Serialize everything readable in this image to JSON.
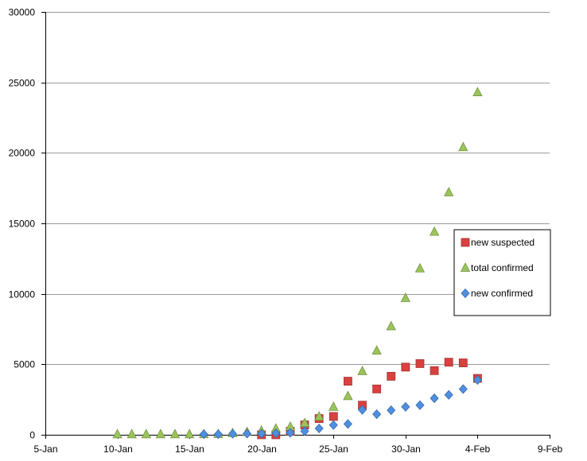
{
  "chart_data": {
    "type": "scatter",
    "title": "",
    "xlabel": "",
    "ylabel": "",
    "x_axis": {
      "type": "date",
      "min": "2020-01-05",
      "max": "2020-02-09",
      "ticks": [
        "2020-01-05",
        "2020-01-10",
        "2020-01-15",
        "2020-01-20",
        "2020-01-25",
        "2020-01-30",
        "2020-02-04",
        "2020-02-09"
      ],
      "tick_labels": [
        "5-Jan",
        "10-Jan",
        "15-Jan",
        "20-Jan",
        "25-Jan",
        "30-Jan",
        "4-Feb",
        "9-Feb"
      ]
    },
    "y_axis": {
      "min": 0,
      "max": 30000,
      "ticks": [
        0,
        5000,
        10000,
        15000,
        20000,
        25000,
        30000
      ],
      "tick_labels": [
        "0",
        "5000",
        "10000",
        "15000",
        "20000",
        "25000",
        "30000"
      ]
    },
    "grid": {
      "horizontal": true,
      "vertical": false
    },
    "legend_position": "right",
    "series": [
      {
        "name": "new suspected",
        "marker": "square",
        "color": "#d9413f",
        "points": [
          {
            "x": "2020-01-20",
            "y": 0
          },
          {
            "x": "2020-01-21",
            "y": 0
          },
          {
            "x": "2020-01-22",
            "y": 250
          },
          {
            "x": "2020-01-23",
            "y": 700
          },
          {
            "x": "2020-01-24",
            "y": 1150
          },
          {
            "x": "2020-01-25",
            "y": 1300
          },
          {
            "x": "2020-01-26",
            "y": 3800
          },
          {
            "x": "2020-01-27",
            "y": 2100
          },
          {
            "x": "2020-01-28",
            "y": 3250
          },
          {
            "x": "2020-01-29",
            "y": 4150
          },
          {
            "x": "2020-01-30",
            "y": 4800
          },
          {
            "x": "2020-01-31",
            "y": 5050
          },
          {
            "x": "2020-02-01",
            "y": 4550
          },
          {
            "x": "2020-02-02",
            "y": 5150
          },
          {
            "x": "2020-02-03",
            "y": 5100
          },
          {
            "x": "2020-02-04",
            "y": 4000
          }
        ]
      },
      {
        "name": "total confirmed",
        "marker": "triangle",
        "color": "#9bc45a",
        "points": [
          {
            "x": "2020-01-10",
            "y": 40
          },
          {
            "x": "2020-01-11",
            "y": 40
          },
          {
            "x": "2020-01-12",
            "y": 40
          },
          {
            "x": "2020-01-13",
            "y": 40
          },
          {
            "x": "2020-01-14",
            "y": 40
          },
          {
            "x": "2020-01-15",
            "y": 40
          },
          {
            "x": "2020-01-16",
            "y": 45
          },
          {
            "x": "2020-01-17",
            "y": 60
          },
          {
            "x": "2020-01-18",
            "y": 120
          },
          {
            "x": "2020-01-19",
            "y": 200
          },
          {
            "x": "2020-01-20",
            "y": 290
          },
          {
            "x": "2020-01-21",
            "y": 440
          },
          {
            "x": "2020-01-22",
            "y": 570
          },
          {
            "x": "2020-01-23",
            "y": 830
          },
          {
            "x": "2020-01-24",
            "y": 1290
          },
          {
            "x": "2020-01-25",
            "y": 1980
          },
          {
            "x": "2020-01-26",
            "y": 2740
          },
          {
            "x": "2020-01-27",
            "y": 4510
          },
          {
            "x": "2020-01-28",
            "y": 5970
          },
          {
            "x": "2020-01-29",
            "y": 7700
          },
          {
            "x": "2020-01-30",
            "y": 9700
          },
          {
            "x": "2020-01-31",
            "y": 11800
          },
          {
            "x": "2020-02-01",
            "y": 14400
          },
          {
            "x": "2020-02-02",
            "y": 17200
          },
          {
            "x": "2020-02-03",
            "y": 20400
          },
          {
            "x": "2020-02-04",
            "y": 24300
          }
        ]
      },
      {
        "name": "new confirmed",
        "marker": "diamond",
        "color": "#4f8fe0",
        "points": [
          {
            "x": "2020-01-16",
            "y": 40
          },
          {
            "x": "2020-01-17",
            "y": 40
          },
          {
            "x": "2020-01-18",
            "y": 70
          },
          {
            "x": "2020-01-19",
            "y": 80
          },
          {
            "x": "2020-01-20",
            "y": 80
          },
          {
            "x": "2020-01-21",
            "y": 110
          },
          {
            "x": "2020-01-22",
            "y": 140
          },
          {
            "x": "2020-01-23",
            "y": 260
          },
          {
            "x": "2020-01-24",
            "y": 450
          },
          {
            "x": "2020-01-25",
            "y": 690
          },
          {
            "x": "2020-01-26",
            "y": 770
          },
          {
            "x": "2020-01-27",
            "y": 1770
          },
          {
            "x": "2020-01-28",
            "y": 1460
          },
          {
            "x": "2020-01-29",
            "y": 1740
          },
          {
            "x": "2020-01-30",
            "y": 1980
          },
          {
            "x": "2020-01-31",
            "y": 2100
          },
          {
            "x": "2020-02-01",
            "y": 2590
          },
          {
            "x": "2020-02-02",
            "y": 2830
          },
          {
            "x": "2020-02-03",
            "y": 3240
          },
          {
            "x": "2020-02-04",
            "y": 3890
          }
        ]
      }
    ],
    "legend_order": [
      "new suspected",
      "total confirmed",
      "new confirmed"
    ]
  }
}
